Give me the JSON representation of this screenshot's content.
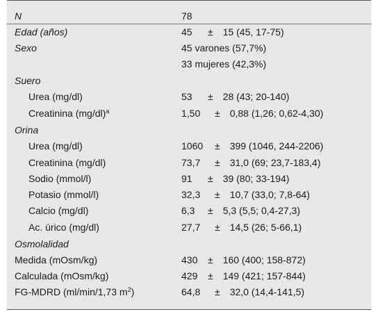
{
  "rows": [
    {
      "label": "N",
      "italic": true,
      "indent": false,
      "value": "78"
    },
    {
      "label": "Edad (años)",
      "italic": true,
      "indent": false,
      "value": "45 ± 15 (45, 17-75)",
      "mean": "45",
      "pm": "±",
      "sd": "15 (45, 17-75)"
    },
    {
      "label": "Sexo",
      "italic": true,
      "indent": false,
      "value": "45 varones (57,7%)"
    },
    {
      "label": "",
      "italic": false,
      "indent": false,
      "value": "33 mujeres (42,3%)"
    },
    {
      "label": "Suero",
      "italic": true,
      "indent": false,
      "value": ""
    },
    {
      "label": "Urea (mg/dl)",
      "italic": false,
      "indent": true,
      "mean": "53",
      "pm": "±",
      "sd": "28 (43; 20-140)"
    },
    {
      "label": "Creatinina (mg/dl)",
      "sup": "a",
      "italic": false,
      "indent": true,
      "mean": "1,50",
      "pm": "±",
      "sd": "0,88 (1,26; 0,62-4,30)"
    },
    {
      "label": "Orina",
      "italic": true,
      "indent": false,
      "value": ""
    },
    {
      "label": "Urea (mg/dl)",
      "italic": false,
      "indent": true,
      "mean": "1060",
      "pm": "±",
      "sd": "399 (1046, 244-2206)"
    },
    {
      "label": "Creatinina (mg/dl)",
      "italic": false,
      "indent": true,
      "mean": "73,7",
      "pm": "±",
      "sd": "31,0 (69; 23,7-183,4)"
    },
    {
      "label": "Sodio (mmol/l)",
      "italic": false,
      "indent": true,
      "mean": "91",
      "pm": "±",
      "sd": "39 (80; 33-194)"
    },
    {
      "label": "Potasio (mmol/l)",
      "italic": false,
      "indent": true,
      "mean": "32,3",
      "pm": "±",
      "sd": "10,7 (33,0; 7,8-64)"
    },
    {
      "label": "Calcio (mg/dl)",
      "italic": false,
      "indent": true,
      "mean": "6,3",
      "pm": "±",
      "sd": "5,3 (5,5; 0,4-27,3)"
    },
    {
      "label": "Ac. úrico (mg/dl)",
      "italic": false,
      "indent": true,
      "mean": "27,7",
      "pm": "±",
      "sd": "14,5 (26; 5-66,1)"
    },
    {
      "label": "Osmolalidad",
      "italic": true,
      "indent": false,
      "value": ""
    },
    {
      "label": "Medida (mOsm/kg)",
      "italic": false,
      "indent": false,
      "mean": "430",
      "pm": "±",
      "sd": "160 (400; 158-872)"
    },
    {
      "label": "Calculada (mOsm/kg)",
      "italic": false,
      "indent": false,
      "mean": "429",
      "pm": "±",
      "sd": "149 (421; 157-844)"
    },
    {
      "label": "FG-MDRD (ml/min/1,73 m",
      "sup": "2",
      "suffix": ")",
      "italic": false,
      "indent": false,
      "mean": "64,8",
      "pm": "±",
      "sd": "32,0 (14,4-141,5)"
    }
  ],
  "colors": {
    "background": "#e8e8e8",
    "rule": "#555555"
  }
}
